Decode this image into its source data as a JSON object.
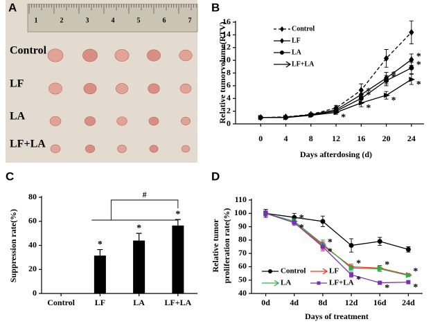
{
  "photo_panel": {
    "label": "A",
    "ruler_numbers": [
      "1",
      "2",
      "3",
      "4",
      "5",
      "6",
      "7"
    ],
    "groups": [
      "Control",
      "LF",
      "LA",
      "LF+LA"
    ]
  },
  "chart_data": [
    {
      "panel_label": "B",
      "type": "line",
      "x": [
        0,
        4,
        8,
        12,
        16,
        20,
        24
      ],
      "xlim": [
        -4,
        26
      ],
      "xticks": [
        0,
        4,
        8,
        12,
        16,
        20,
        24
      ],
      "ylim": [
        0,
        16
      ],
      "yticks": [
        0,
        2,
        4,
        6,
        8,
        10,
        12,
        14,
        16
      ],
      "xlabel": "Days afterdosing (d)",
      "ylabel": "Relative tumorvolume(RTV)",
      "legend": "upper left",
      "series": [
        {
          "name": "Control",
          "color": "#000000",
          "line_style": "dashed",
          "marker": "diamond",
          "values": [
            1,
            1.1,
            1.5,
            2.5,
            5.3,
            10.3,
            14.4
          ],
          "errors": [
            0,
            0.1,
            0.2,
            0.4,
            1,
            1.4,
            1.8
          ]
        },
        {
          "name": "LF",
          "color": "#000000",
          "line_style": "solid",
          "marker": "diamond",
          "values": [
            1,
            1.05,
            1.45,
            2.2,
            4.6,
            7.2,
            10.1
          ],
          "errors": [
            0,
            0.1,
            0.2,
            0.4,
            0.8,
            0.9,
            0.9
          ]
        },
        {
          "name": "LA",
          "color": "#000000",
          "line_style": "solid",
          "marker": "circle",
          "values": [
            1,
            1,
            1.4,
            2,
            4,
            6.8,
            8.8
          ],
          "errors": [
            0,
            0.1,
            0.2,
            0.3,
            0.7,
            0.8,
            0.9
          ]
        },
        {
          "name": "LF+LA",
          "color": "#000000",
          "line_style": "solid",
          "marker": "arrow",
          "values": [
            1,
            1,
            1.35,
            1.8,
            3.3,
            4.5,
            7
          ],
          "errors": [
            0,
            0.1,
            0.2,
            0.3,
            0.6,
            0.6,
            0.8
          ]
        }
      ],
      "annotations": [
        {
          "text": "*",
          "series": 3,
          "index": 3
        },
        {
          "text": "*",
          "series": 1,
          "index": 4
        },
        {
          "text": "*",
          "series": 2,
          "index": 4
        },
        {
          "text": "*",
          "series": 3,
          "index": 4
        },
        {
          "text": "*",
          "series": 1,
          "index": 5
        },
        {
          "text": "*",
          "series": 2,
          "index": 5
        },
        {
          "text": "*",
          "series": 3,
          "index": 5
        },
        {
          "text": "*",
          "series": 1,
          "index": 6
        },
        {
          "text": "*",
          "series": 2,
          "index": 6
        },
        {
          "text": "*",
          "series": 3,
          "index": 6
        }
      ]
    },
    {
      "panel_label": "C",
      "type": "bar",
      "categories": [
        "Control",
        "LF",
        "LA",
        "LF+LA"
      ],
      "values": [
        0,
        31.5,
        44,
        56.5
      ],
      "errors": [
        0,
        5,
        6,
        5
      ],
      "color": "#000000",
      "ylim": [
        0,
        80
      ],
      "yticks": [
        0,
        20,
        40,
        60,
        80
      ],
      "ylabel": "Suppression rate(%)",
      "annotations": [
        {
          "text": "*",
          "index": 1
        },
        {
          "text": "*",
          "index": 2
        },
        {
          "text": "*",
          "index": 3
        }
      ],
      "bracket": {
        "text": "#"
      }
    },
    {
      "panel_label": "D",
      "type": "line",
      "categories": [
        "0d",
        "4d",
        "8d",
        "12d",
        "16d",
        "24d"
      ],
      "ylim": [
        40,
        110
      ],
      "yticks": [
        40,
        50,
        60,
        70,
        80,
        90,
        100,
        110
      ],
      "xlabel": "Days of treatment",
      "ylabel_lines": [
        "Relative tumor",
        "proliferation rate(%)"
      ],
      "legend": "lower left",
      "series": [
        {
          "name": "Control",
          "color": "#000000",
          "line_style": "solid",
          "marker": "circle",
          "values": [
            100,
            97,
            94,
            76,
            79,
            73
          ],
          "errors": [
            3,
            3,
            4,
            5,
            3,
            2
          ]
        },
        {
          "name": "LF",
          "color": "#ff2a1a",
          "line_style": "solid",
          "marker": "arrow",
          "values": [
            100,
            94,
            76,
            60,
            59,
            54
          ],
          "errors": [
            2,
            2,
            3,
            2,
            2,
            1
          ]
        },
        {
          "name": "LA",
          "color": "#2ab04a",
          "line_style": "solid",
          "marker": "arrow",
          "values": [
            100,
            94,
            77,
            59,
            58.5,
            53.5
          ],
          "errors": [
            2,
            2,
            3,
            2,
            2,
            1
          ]
        },
        {
          "name": "LF+LA",
          "color": "#7a2fb5",
          "line_style": "solid",
          "marker": "square",
          "values": [
            100,
            93,
            75,
            54,
            48,
            48.5
          ],
          "errors": [
            2,
            2,
            3,
            2,
            1,
            1
          ]
        }
      ],
      "annotations": [
        {
          "text": "*",
          "series": 3,
          "index": 1
        },
        {
          "text": "*",
          "series": 1,
          "index": 1
        },
        {
          "text": "*",
          "series": 1,
          "index": 2
        },
        {
          "text": "*",
          "series": 3,
          "index": 2
        },
        {
          "text": "*",
          "series": 1,
          "index": 3
        },
        {
          "text": "*",
          "series": 3,
          "index": 3
        },
        {
          "text": "*",
          "series": 1,
          "index": 4
        },
        {
          "text": "*",
          "series": 3,
          "index": 4
        },
        {
          "text": "*",
          "series": 1,
          "index": 5
        },
        {
          "text": "*",
          "series": 3,
          "index": 5
        }
      ]
    }
  ]
}
